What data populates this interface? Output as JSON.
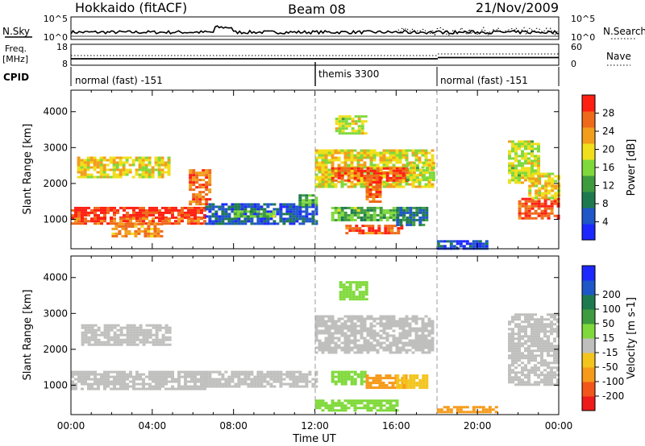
{
  "header": {
    "title_left": "Hokkaido (fitACF)",
    "title_center": "Beam 08",
    "title_right": "21/Nov/2009"
  },
  "top_panels": {
    "nsky_label": "N.Sky",
    "nsky_ticks": [
      "10^5",
      "10^0"
    ],
    "nsearch_label": "N.Search",
    "nsearch_ticks": [
      "10^5",
      "10^0"
    ],
    "freq_label": "Freq.",
    "freq_unit": "[MHz]",
    "freq_ticks": [
      "18",
      "8"
    ],
    "nave_label": "Nave",
    "nave_ticks": [
      "60",
      "0"
    ],
    "cpid_label": "CPID",
    "cpid_segments": [
      {
        "label": "normal (fast) -151",
        "start_hour": 0,
        "end_hour": 12
      },
      {
        "label": "themis 3300",
        "start_hour": 12,
        "end_hour": 18
      },
      {
        "label": "normal (fast) -151",
        "start_hour": 18,
        "end_hour": 24
      }
    ]
  },
  "chart_data": [
    {
      "type": "heatmap",
      "name": "power",
      "xlabel": "",
      "ylabel": "Slant Range [km]",
      "xlim": [
        0,
        24
      ],
      "ylim": [
        180,
        4600
      ],
      "yticks": [
        1000,
        2000,
        3000,
        4000
      ],
      "colorbar": {
        "label": "Power [dB]",
        "ticks": [
          4,
          8,
          12,
          16,
          20,
          24,
          28
        ],
        "range": [
          0,
          32
        ],
        "colors": [
          "#1c28ff",
          "#1f56c8",
          "#1e7a4e",
          "#3e9b3e",
          "#7fd93a",
          "#f0df1a",
          "#f29e1c",
          "#ee6a1a",
          "#ff1f12"
        ]
      },
      "regions": [
        {
          "t0": 0.0,
          "t1": 6.6,
          "r0": 1050,
          "r1": 1350,
          "val": 30
        },
        {
          "t0": 0.0,
          "t1": 6.6,
          "r0": 880,
          "r1": 1050,
          "val": 27
        },
        {
          "t0": 5.8,
          "t1": 6.8,
          "r0": 1400,
          "r1": 2400,
          "val": 26
        },
        {
          "t0": 0.3,
          "t1": 4.8,
          "r0": 2150,
          "r1": 2750,
          "val": 20
        },
        {
          "t0": 2.0,
          "t1": 4.5,
          "r0": 500,
          "r1": 900,
          "val": 24
        },
        {
          "t0": 6.6,
          "t1": 12.0,
          "r0": 850,
          "r1": 1450,
          "val": 6
        },
        {
          "t0": 8.0,
          "t1": 10.0,
          "r0": 1050,
          "r1": 1250,
          "val": 14
        },
        {
          "t0": 11.2,
          "t1": 12.0,
          "r0": 1400,
          "r1": 1700,
          "val": 12
        },
        {
          "t0": 12.0,
          "t1": 17.8,
          "r0": 1900,
          "r1": 2950,
          "val": 20
        },
        {
          "t0": 12.8,
          "t1": 16.5,
          "r0": 2100,
          "r1": 2450,
          "val": 28
        },
        {
          "t0": 14.5,
          "t1": 15.2,
          "r0": 1500,
          "r1": 2200,
          "val": 27
        },
        {
          "t0": 13.0,
          "t1": 14.5,
          "r0": 3400,
          "r1": 3900,
          "val": 18
        },
        {
          "t0": 12.8,
          "t1": 16.3,
          "r0": 950,
          "r1": 1350,
          "val": 14
        },
        {
          "t0": 13.5,
          "t1": 16.3,
          "r0": 600,
          "r1": 850,
          "val": 28
        },
        {
          "t0": 16.0,
          "t1": 17.5,
          "r0": 850,
          "r1": 1350,
          "val": 8
        },
        {
          "t0": 16.5,
          "t1": 17.8,
          "r0": 2100,
          "r1": 2600,
          "val": 18
        },
        {
          "t0": 18.0,
          "t1": 20.5,
          "r0": 180,
          "r1": 420,
          "val": 4
        },
        {
          "t0": 21.5,
          "t1": 23.0,
          "r0": 2000,
          "r1": 3200,
          "val": 18
        },
        {
          "t0": 22.0,
          "t1": 24.0,
          "r0": 1000,
          "r1": 1600,
          "val": 28
        },
        {
          "t0": 22.5,
          "t1": 24.0,
          "r0": 1600,
          "r1": 2300,
          "val": 20
        }
      ]
    },
    {
      "type": "heatmap",
      "name": "velocity",
      "xlabel": "Time UT",
      "ylabel": "Slant Range [km]",
      "xlim": [
        0,
        24
      ],
      "ylim": [
        180,
        4600
      ],
      "yticks": [
        1000,
        2000,
        3000,
        4000
      ],
      "xticks": [
        "00:00",
        "04:00",
        "08:00",
        "12:00",
        "16:00",
        "20:00",
        "00:00"
      ],
      "colorbar": {
        "label": "Velocity [m s-1]",
        "ticks": [
          "-200",
          "-100",
          "-50",
          "-15",
          "15",
          "50",
          "100",
          "200"
        ],
        "colors": [
          "#ee1b1b",
          "#f2561a",
          "#f59a1a",
          "#f3c41c",
          "#bfbfbd",
          "#7fd93a",
          "#3e9b3e",
          "#1e7a4e",
          "#1f56c8",
          "#1c28ff"
        ]
      },
      "regions": [
        {
          "t0": 0.0,
          "t1": 6.6,
          "r0": 900,
          "r1": 1400,
          "val": 0
        },
        {
          "t0": 0.5,
          "t1": 4.8,
          "r0": 2150,
          "r1": 2700,
          "val": 0
        },
        {
          "t0": 6.6,
          "t1": 12.0,
          "r0": 950,
          "r1": 1400,
          "val": 0
        },
        {
          "t0": 12.0,
          "t1": 17.8,
          "r0": 1900,
          "r1": 2950,
          "val": 0
        },
        {
          "t0": 12.8,
          "t1": 14.5,
          "r0": 1000,
          "r1": 1400,
          "val": 40
        },
        {
          "t0": 14.5,
          "t1": 16.5,
          "r0": 900,
          "r1": 1300,
          "val": -60
        },
        {
          "t0": 16.0,
          "t1": 17.5,
          "r0": 900,
          "r1": 1300,
          "val": -40
        },
        {
          "t0": 13.2,
          "t1": 14.5,
          "r0": 3400,
          "r1": 3900,
          "val": 30
        },
        {
          "t0": 12.0,
          "t1": 16.0,
          "r0": 300,
          "r1": 600,
          "val": 30
        },
        {
          "t0": 18.0,
          "t1": 21.0,
          "r0": 250,
          "r1": 420,
          "val": -70
        },
        {
          "t0": 21.5,
          "t1": 24.0,
          "r0": 1000,
          "r1": 3000,
          "val": 0
        }
      ]
    }
  ]
}
